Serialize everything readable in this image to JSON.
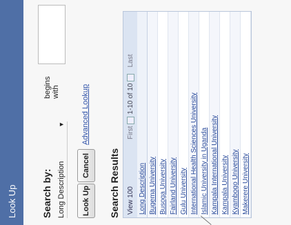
{
  "window": {
    "title": "Look Up"
  },
  "search": {
    "label": "Search by:",
    "field_value": "Long Description",
    "operator": "begins with",
    "input_value": ""
  },
  "buttons": {
    "lookup": "Look Up",
    "cancel": "Cancel",
    "advanced": "Advanced Lookup"
  },
  "results": {
    "title": "Search Results",
    "pager": {
      "view": "View 100",
      "first": "First",
      "info": "1-10 of 10",
      "last": "Last"
    },
    "column_header": "Long Description",
    "rows": [
      "Bugema University",
      "Busoga University",
      "Fairland University",
      "Gulu University",
      "International Health Sciences University",
      "Islamic University in Uganda",
      "Kampala International University",
      "Kampala University",
      "Kyambogo University",
      "Makerere University"
    ]
  }
}
